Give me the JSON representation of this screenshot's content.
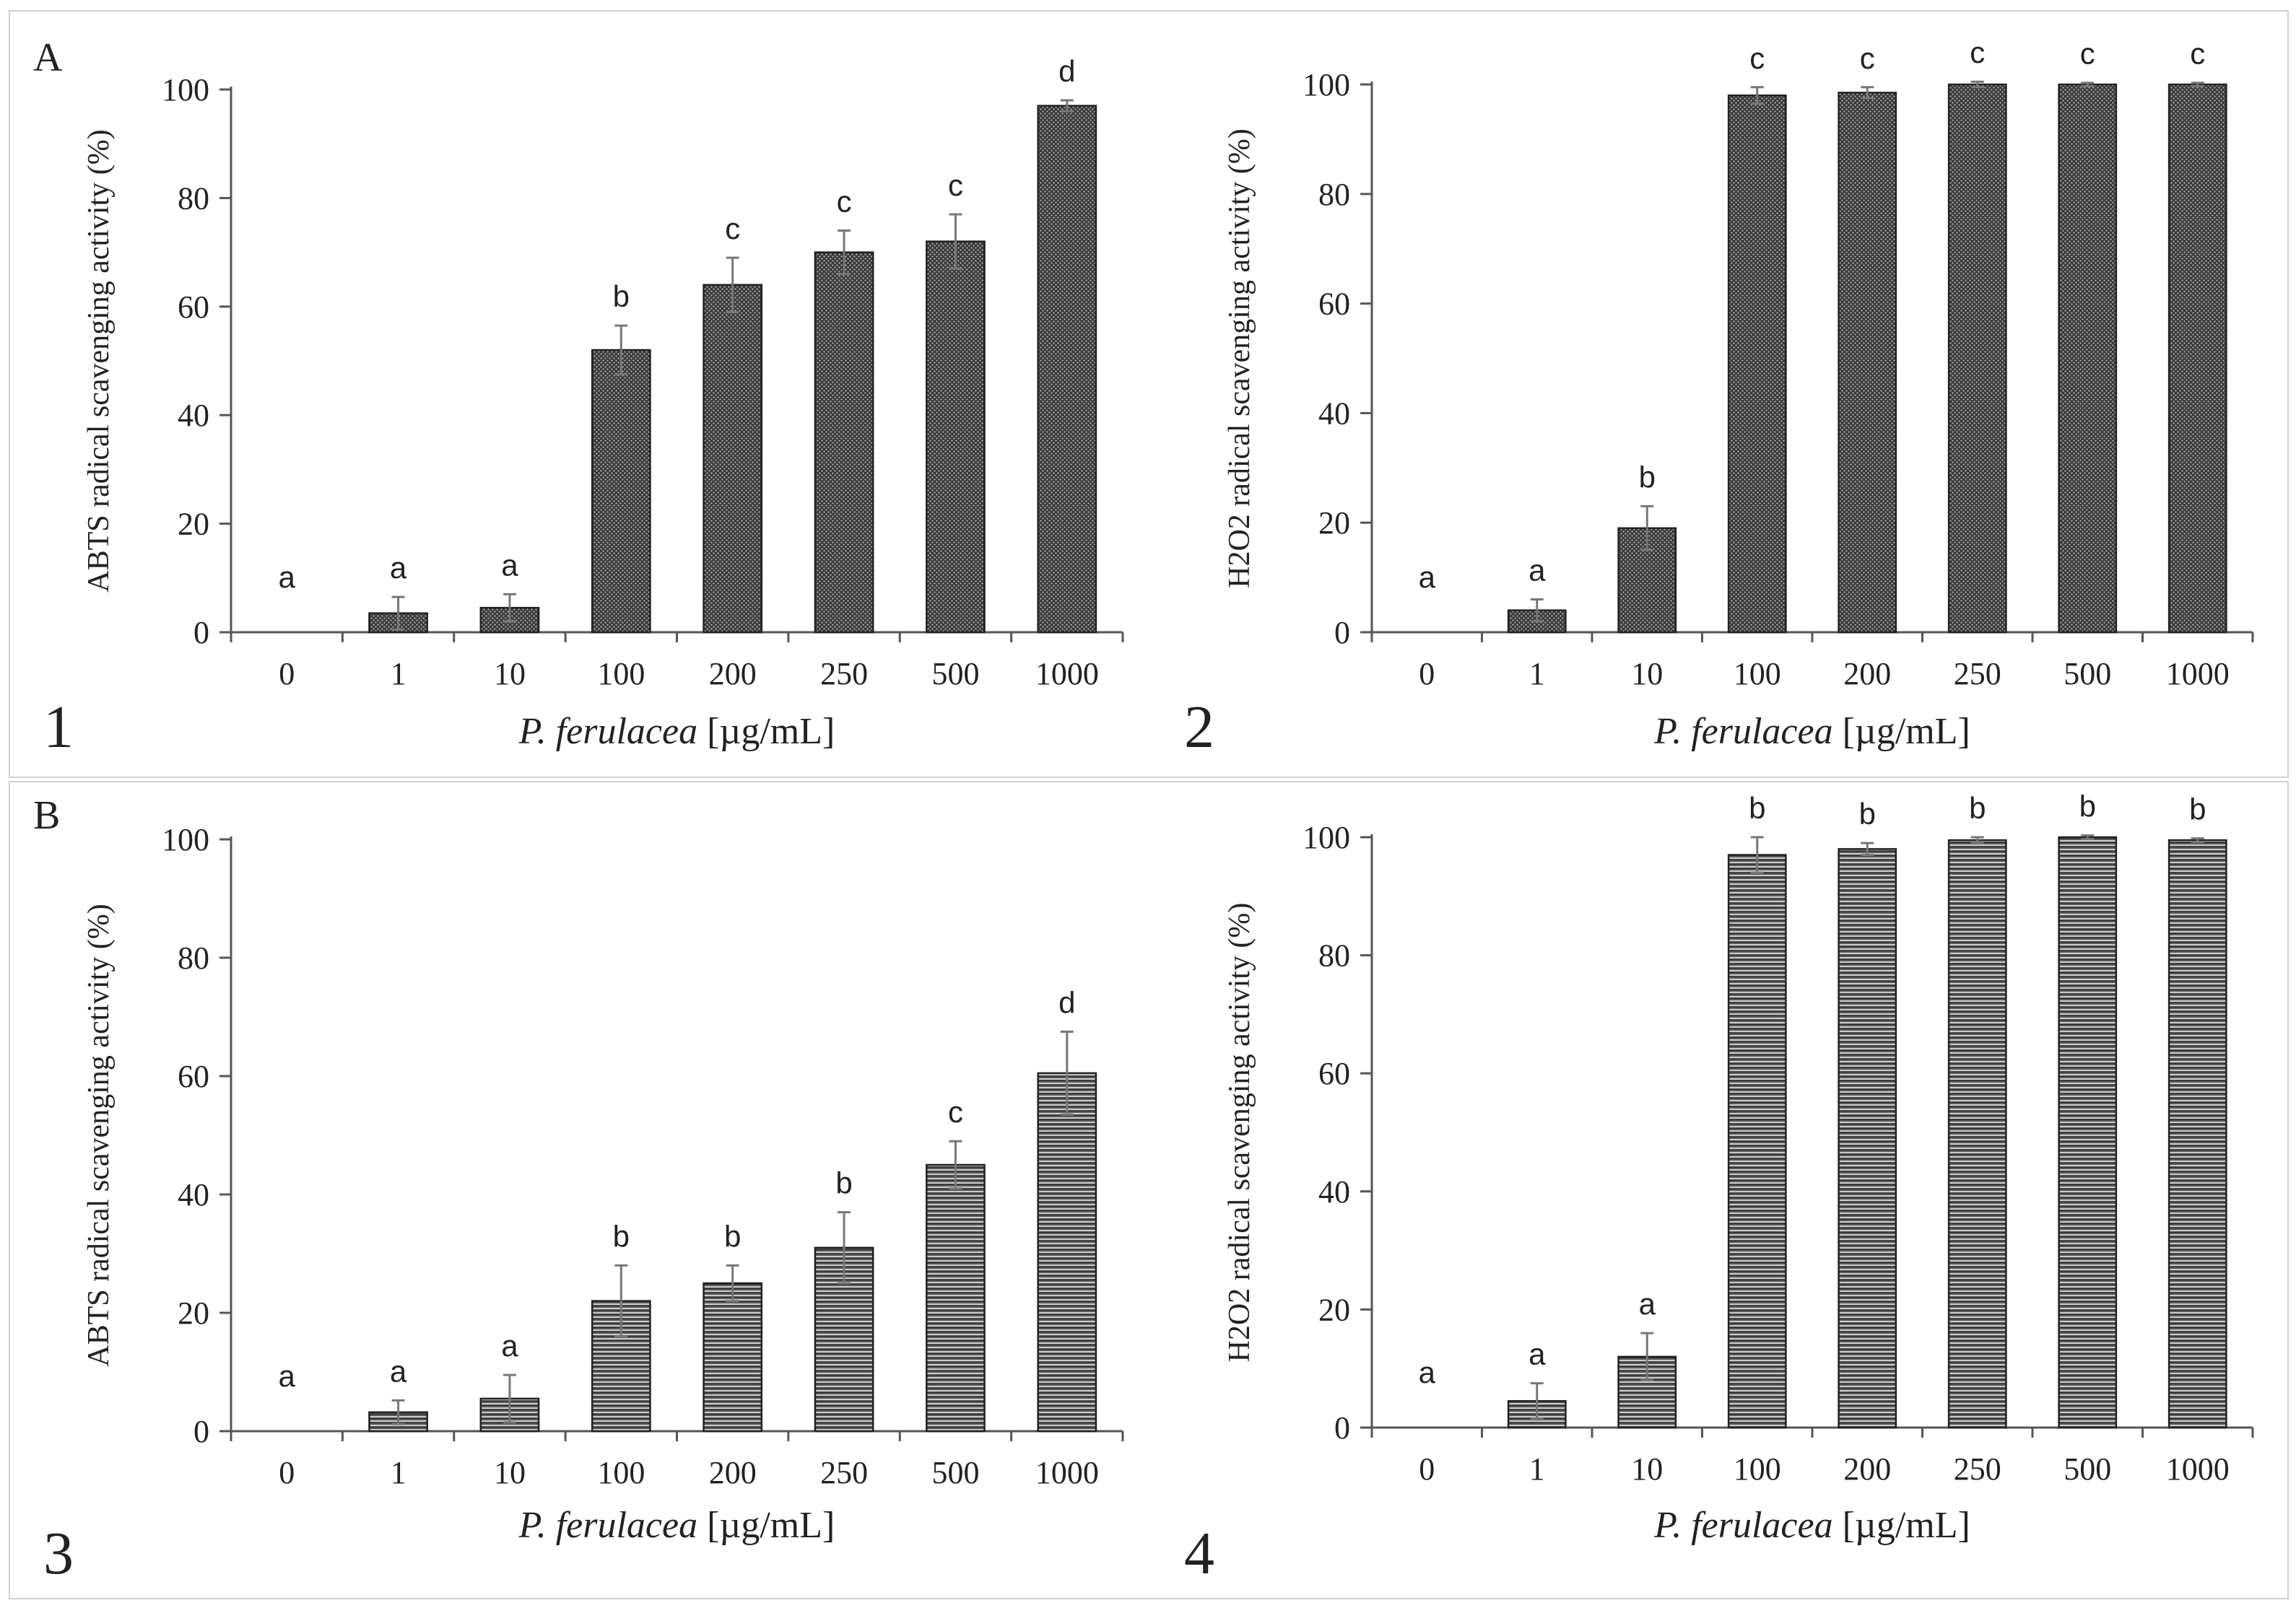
{
  "figure": {
    "section_labels": [
      "A",
      "B"
    ],
    "panel_numbers": [
      "1",
      "2",
      "3",
      "4"
    ]
  },
  "colors": {
    "axis": "#555555",
    "bar_outline": "#222222",
    "error_bar": "#777777",
    "text": "#222222"
  },
  "chart_data": [
    {
      "id": "panel-1",
      "panel_number": "1",
      "section": "A",
      "type": "bar",
      "title": "",
      "xlabel_species": "P. ferulacea",
      "xlabel_unit": " [µg/mL]",
      "ylabel": "ABTS radical scavenging activity (%)",
      "ylim": [
        0,
        100
      ],
      "yticks": [
        0,
        20,
        40,
        60,
        80,
        100
      ],
      "categories": [
        "0",
        "1",
        "10",
        "100",
        "200",
        "250",
        "500",
        "1000"
      ],
      "values": [
        0,
        3.5,
        4.5,
        52,
        64,
        70,
        72,
        97
      ],
      "errors": [
        0,
        3,
        2.5,
        4.5,
        5,
        4,
        5,
        1
      ],
      "significance": [
        "a",
        "a",
        "a",
        "b",
        "c",
        "c",
        "c",
        "d"
      ],
      "pattern": "dots"
    },
    {
      "id": "panel-2",
      "panel_number": "2",
      "section": "A",
      "type": "bar",
      "title": "",
      "xlabel_species": "P. ferulacea",
      "xlabel_unit": " [µg/mL]",
      "ylabel": "H2O2 radical scavenging activity (%)",
      "ylim": [
        0,
        100
      ],
      "yticks": [
        0,
        20,
        40,
        60,
        80,
        100
      ],
      "categories": [
        "0",
        "1",
        "10",
        "100",
        "200",
        "250",
        "500",
        "1000"
      ],
      "values": [
        0,
        4,
        19,
        98,
        98.5,
        100,
        100,
        100
      ],
      "errors": [
        0,
        2,
        4,
        1.5,
        1,
        0.5,
        0.3,
        0.3
      ],
      "significance": [
        "a",
        "a",
        "b",
        "c",
        "c",
        "c",
        "c",
        "c"
      ],
      "pattern": "dots"
    },
    {
      "id": "panel-3",
      "panel_number": "3",
      "section": "B",
      "type": "bar",
      "title": "",
      "xlabel_species": "P. ferulacea",
      "xlabel_unit": " [µg/mL]",
      "ylabel": "ABTS radical scavenging activity (%)",
      "ylim": [
        0,
        100
      ],
      "yticks": [
        0,
        20,
        40,
        60,
        80,
        100
      ],
      "categories": [
        "0",
        "1",
        "10",
        "100",
        "200",
        "250",
        "500",
        "1000"
      ],
      "values": [
        0,
        3.2,
        5.5,
        22,
        25,
        31,
        45,
        60.5
      ],
      "errors": [
        0,
        2,
        4,
        6,
        3,
        6,
        4,
        7
      ],
      "significance": [
        "a",
        "a",
        "a",
        "b",
        "b",
        "b",
        "c",
        "d"
      ],
      "pattern": "lines"
    },
    {
      "id": "panel-4",
      "panel_number": "4",
      "section": "B",
      "type": "bar",
      "title": "",
      "xlabel_species": "P. ferulacea",
      "xlabel_unit": " [µg/mL]",
      "ylabel": "H2O2  radical scavenging activity (%)",
      "ylim": [
        0,
        100
      ],
      "yticks": [
        0,
        20,
        40,
        60,
        80,
        100
      ],
      "categories": [
        "0",
        "1",
        "10",
        "100",
        "200",
        "250",
        "500",
        "1000"
      ],
      "values": [
        0,
        4.5,
        12,
        97,
        98,
        99.5,
        100,
        99.5
      ],
      "errors": [
        0,
        3,
        4,
        3,
        1,
        0.5,
        0.3,
        0.3
      ],
      "significance": [
        "a",
        "a",
        "a",
        "b",
        "b",
        "b",
        "b",
        "b"
      ],
      "pattern": "lines"
    }
  ]
}
